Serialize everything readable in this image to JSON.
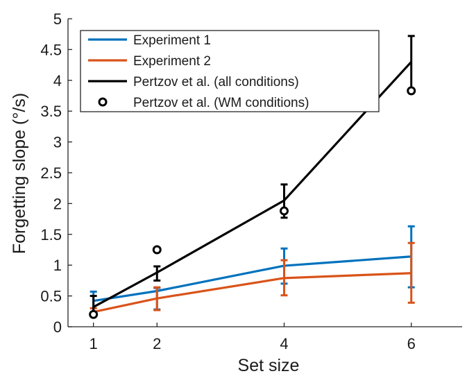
{
  "chart_data": {
    "type": "line",
    "xlabel": "Set size",
    "ylabel": "Forgetting slope (°/s)",
    "xlim": [
      0.6,
      6.8
    ],
    "ylim": [
      0,
      5
    ],
    "x_ticks": [
      "1",
      "2",
      "4",
      "6"
    ],
    "y_ticks": [
      "0",
      "0.5",
      "1",
      "1.5",
      "2",
      "2.5",
      "3",
      "3.5",
      "4",
      "4.5",
      "5"
    ],
    "grid": false,
    "legend_position": "top-left",
    "series": [
      {
        "name": "Experiment 1",
        "color": "#0072BD",
        "x": [
          1,
          2,
          4,
          6
        ],
        "y": [
          0.42,
          0.58,
          0.99,
          1.14
        ],
        "err_low": [
          0.2,
          0.28,
          0.7,
          0.64
        ],
        "err_high": [
          0.57,
          0.63,
          1.27,
          1.63
        ]
      },
      {
        "name": "Experiment 2",
        "color": "#D95319",
        "x": [
          1,
          2,
          4,
          6
        ],
        "y": [
          0.24,
          0.46,
          0.79,
          0.87
        ],
        "err_low": [
          0.17,
          0.27,
          0.51,
          0.39
        ],
        "err_high": [
          0.3,
          0.64,
          1.08,
          1.36
        ]
      },
      {
        "name": "Pertzov et al. (all conditions)",
        "color": "#000000",
        "x": [
          1,
          2,
          4,
          6
        ],
        "y": [
          0.32,
          0.88,
          2.05,
          4.3
        ],
        "err_low": [
          0.22,
          0.75,
          1.77,
          3.86
        ],
        "err_high": [
          0.5,
          0.98,
          2.31,
          4.72
        ]
      },
      {
        "name": "Pertzov et al. (WM conditions)",
        "color": "#000000",
        "marker": "circle",
        "x": [
          1,
          2,
          4,
          6
        ],
        "y": [
          0.2,
          1.25,
          1.88,
          3.83
        ]
      }
    ]
  }
}
